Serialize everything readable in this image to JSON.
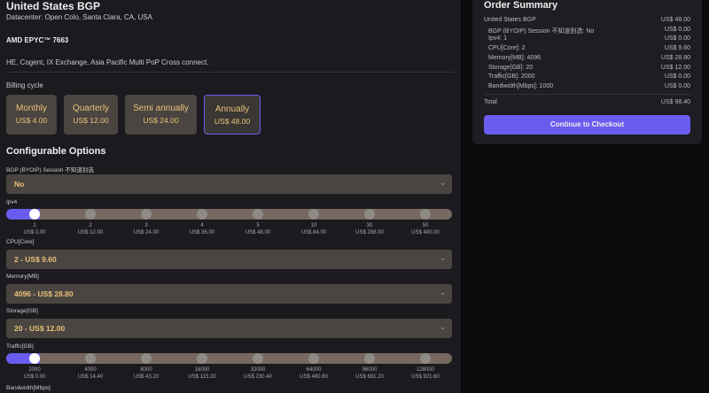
{
  "product": {
    "title": "United States BGP",
    "datacenter": "Datacenter: Open Colo, Santa Clara, CA, USA",
    "cpu": "AMD EPYC™ 7663",
    "network": "HE, Cogent, IX Exchange, Asia Pacific Multi PoP Cross connect."
  },
  "billing": {
    "label": "Billing cycle",
    "options": [
      {
        "name": "Monthly",
        "price": "US$ 4.00"
      },
      {
        "name": "Quarterly",
        "price": "US$ 12.00"
      },
      {
        "name": "Semi annually",
        "price": "US$ 24.00"
      },
      {
        "name": "Annually",
        "price": "US$ 48.00",
        "selected": true
      }
    ]
  },
  "config": {
    "heading": "Configurable Options",
    "bgp": {
      "label": "BGP (BYOIP) Session 不知道别选",
      "value": "No"
    },
    "ipv4": {
      "label": "Ipv4",
      "selected_index": 0,
      "ticks": [
        [
          "1",
          "US$ 0.00"
        ],
        [
          "2",
          "US$ 12.00"
        ],
        [
          "3",
          "US$ 24.00"
        ],
        [
          "4",
          "US$ 36.00"
        ],
        [
          "5",
          "US$ 48.00"
        ],
        [
          "10",
          "US$ 84.00"
        ],
        [
          "30",
          "US$ 288.00"
        ],
        [
          "50",
          "US$ 480.00"
        ]
      ]
    },
    "cpu": {
      "label": "CPU[Core]",
      "value": "2 - US$ 9.60"
    },
    "memory": {
      "label": "Memory[MB]",
      "value": "4096 - US$ 28.80"
    },
    "storage": {
      "label": "Storage[GB]",
      "value": "20 - US$ 12.00"
    },
    "traffic": {
      "label": "Traffic[GB]",
      "selected_index": 0,
      "ticks": [
        [
          "2000",
          "US$ 0.00"
        ],
        [
          "4000",
          "US$ 14.40"
        ],
        [
          "8000",
          "US$ 43.20"
        ],
        [
          "16000",
          "US$ 115.20"
        ],
        [
          "32000",
          "US$ 230.40"
        ],
        [
          "64000",
          "US$ 460.80"
        ],
        [
          "96000",
          "US$ 691.20"
        ],
        [
          "128000",
          "US$ 921.60"
        ]
      ]
    },
    "bandwidth": {
      "label": "Bandwidth[Mbps]"
    }
  },
  "summary": {
    "title": "Order Summary",
    "items": [
      [
        "United States BGP",
        "US$ 48.00"
      ],
      [
        "BGP (BYOIP) Session 不知道别选: No",
        "US$ 0.00"
      ],
      [
        "Ipv4: 1",
        "US$ 0.00"
      ],
      [
        "CPU[Core]: 2",
        "US$ 9.60"
      ],
      [
        "Memory[MB]: 4096",
        "US$ 28.80"
      ],
      [
        "Storage[GB]: 20",
        "US$ 12.00"
      ],
      [
        "Traffic[GB]: 2000",
        "US$ 0.00"
      ],
      [
        "Bandwidth[Mbps]: 1000",
        "US$ 0.00"
      ]
    ],
    "total_label": "Total",
    "total": "US$ 98.40",
    "checkout": "Continue to Checkout"
  },
  "colors": {
    "accent": "#6b5cf0",
    "price": "#e9c07a"
  }
}
